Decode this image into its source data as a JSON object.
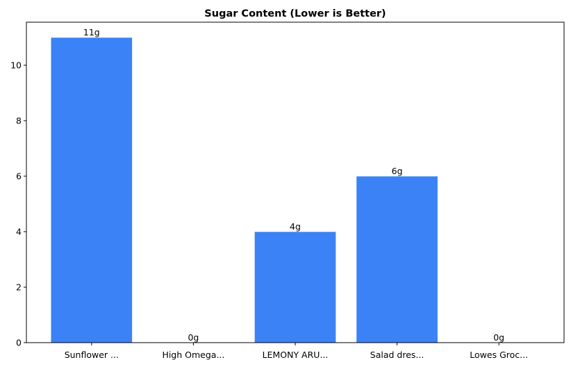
{
  "chart_data": {
    "type": "bar",
    "title": "Sugar Content (Lower is Better)",
    "xlabel": "",
    "ylabel": "",
    "categories": [
      "Sunflower ...",
      "High Omega...",
      "LEMONY ARU...",
      "Salad dres...",
      "Lowes Groc..."
    ],
    "values": [
      11,
      0,
      4,
      6,
      0
    ],
    "data_labels": [
      "11g",
      "0g",
      "4g",
      "6g",
      "0g"
    ],
    "ylim": [
      0,
      11.55
    ],
    "yticks": [
      0,
      2,
      4,
      6,
      8,
      10
    ],
    "grid": false,
    "bar_color": "#3b82f6"
  }
}
